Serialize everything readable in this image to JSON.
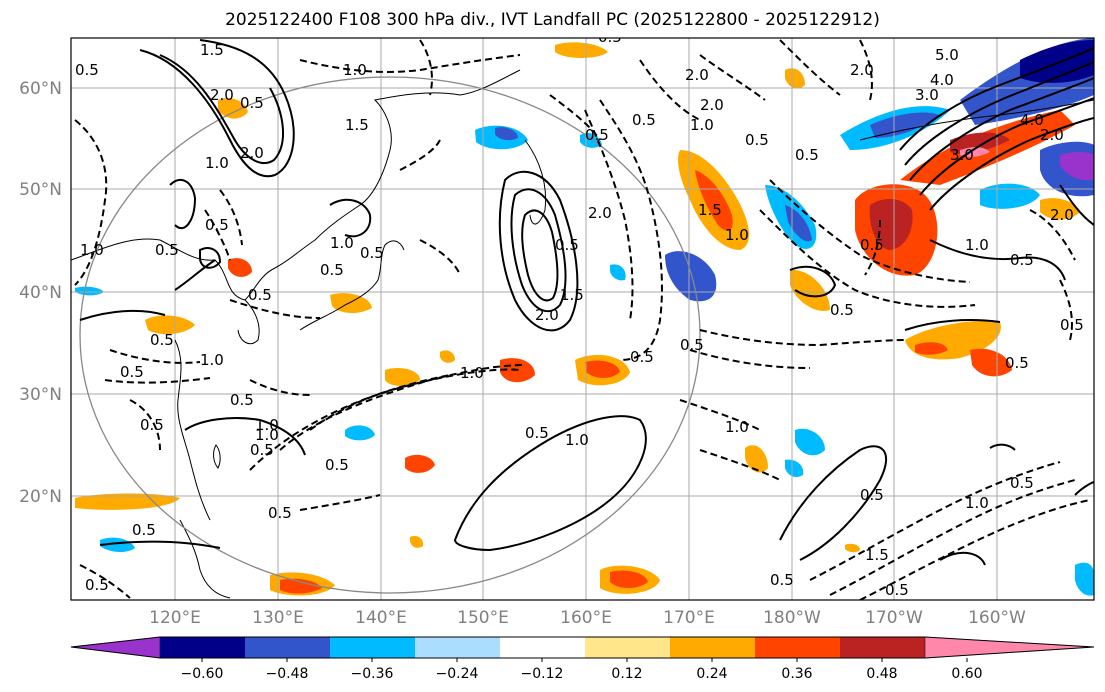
{
  "title": "2025122400 F108 300 hPa div., IVT Landfall PC (2025122800 - 2025122912)",
  "axes": {
    "lon_labels": [
      "120°E",
      "130°E",
      "140°E",
      "150°E",
      "160°E",
      "170°E",
      "180°W",
      "170°W",
      "160°W"
    ],
    "lat_labels": [
      "60°N",
      "50°N",
      "40°N",
      "30°N",
      "20°N"
    ]
  },
  "colorbar": {
    "ticks": [
      "−0.60",
      "−0.48",
      "−0.36",
      "−0.24",
      "−0.12",
      "0.12",
      "0.24",
      "0.36",
      "0.48",
      "0.60"
    ],
    "colors": [
      "#9933cc",
      "#000088",
      "#3355cc",
      "#00bbff",
      "#aaddff",
      "#ffffff",
      "#ffe68a",
      "#ffaa00",
      "#ff4400",
      "#bb2222",
      "#ff88aa"
    ]
  },
  "contour_labels": [
    "1.0",
    "2.0",
    "0.5",
    "1.5",
    "2.0",
    "0.5",
    "1.0",
    "0.5",
    "0.5",
    "1.0",
    "1.5",
    "2.0",
    "1.0",
    "0.5",
    "0.5",
    "1.0",
    "1.5",
    "2.0",
    "2.0",
    "0.5",
    "0.5",
    "0.5",
    "0.5",
    "0.5",
    "0.5",
    "0.5",
    "1.0",
    "0.5",
    "0.5",
    "0.5",
    "0.5",
    "1.0",
    "1.0",
    "0.5",
    "1.5",
    "0.5",
    "0.5",
    "2.0",
    "2.0",
    "0.5",
    "0.5",
    "1.0",
    "0.5",
    "0.5",
    "1.0",
    "2.0",
    "3.0",
    "4.0",
    "5.0",
    "3.0",
    "4.0",
    "2.0",
    "1.0",
    "0.5",
    "0.5",
    "0.5",
    "1.0",
    "0.5",
    "1.0",
    "1.5",
    "0.5",
    "0.5",
    "0.5",
    "0.5",
    "0.5",
    "0.5",
    "1.0"
  ]
}
